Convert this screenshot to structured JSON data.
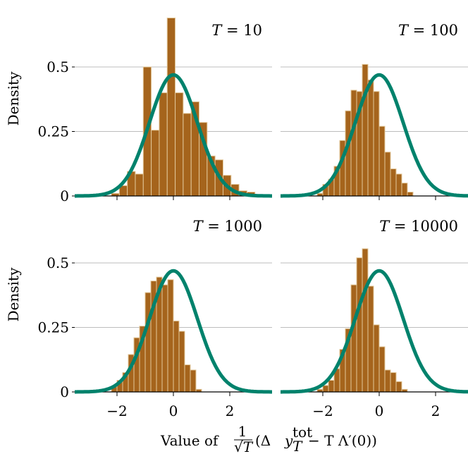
{
  "chart_data": [
    {
      "type": "bar",
      "title": "T = 10",
      "title_var": "T",
      "title_value": "10",
      "ylabel": "Density",
      "xlim": [
        -3.5,
        3.5
      ],
      "ylim": [
        0,
        0.7
      ],
      "yticks": [
        0,
        0.25,
        0.5
      ],
      "ytick_labels": [
        "0",
        "0.25",
        "0.5"
      ],
      "xticks": [],
      "bin_width": 0.283,
      "bin_start": -2.2,
      "values": [
        0.01,
        0.04,
        0.095,
        0.085,
        0.5,
        0.255,
        0.4,
        0.69,
        0.4,
        0.32,
        0.365,
        0.285,
        0.155,
        0.14,
        0.08,
        0.045,
        0.02,
        0.015,
        0.005
      ],
      "normal_curve": {
        "mean": 0,
        "sd": 0.85
      }
    },
    {
      "type": "bar",
      "title": "T = 100",
      "title_var": "T",
      "title_value": "100",
      "ylabel": "",
      "xlim": [
        -3.5,
        3.5
      ],
      "ylim": [
        0,
        0.7
      ],
      "yticks": [
        0,
        0.25,
        0.5
      ],
      "ytick_labels": [],
      "xticks": [],
      "bin_width": 0.2,
      "bin_start": -2.2,
      "values": [
        0.01,
        0.045,
        0.065,
        0.115,
        0.215,
        0.33,
        0.41,
        0.405,
        0.51,
        0.45,
        0.405,
        0.27,
        0.17,
        0.105,
        0.085,
        0.05,
        0.015
      ],
      "normal_curve": {
        "mean": 0,
        "sd": 0.85
      }
    },
    {
      "type": "bar",
      "title": "T = 1000",
      "title_var": "T",
      "title_value": "1000",
      "ylabel": "Density",
      "xlim": [
        -3.5,
        3.5
      ],
      "ylim": [
        0,
        0.7
      ],
      "yticks": [
        0,
        0.25,
        0.5
      ],
      "ytick_labels": [
        "0",
        "0.25",
        "0.5"
      ],
      "xticks": [
        -2,
        0,
        2
      ],
      "xtick_labels": [
        "−2",
        "0",
        "2"
      ],
      "bin_width": 0.2,
      "bin_start": -2.2,
      "values": [
        0.02,
        0.045,
        0.075,
        0.145,
        0.21,
        0.255,
        0.385,
        0.43,
        0.445,
        0.415,
        0.435,
        0.275,
        0.235,
        0.105,
        0.085,
        0.01
      ],
      "normal_curve": {
        "mean": 0,
        "sd": 0.85
      }
    },
    {
      "type": "bar",
      "title": "T = 10000",
      "title_var": "T",
      "title_value": "10000",
      "ylabel": "",
      "xlim": [
        -3.5,
        3.5
      ],
      "ylim": [
        0,
        0.7
      ],
      "yticks": [
        0,
        0.25,
        0.5
      ],
      "ytick_labels": [],
      "xticks": [
        -2,
        0,
        2
      ],
      "xtick_labels": [
        "−2",
        "0",
        "2"
      ],
      "bin_width": 0.2,
      "bin_start": -2.2,
      "values": [
        0.01,
        0.025,
        0.045,
        0.09,
        0.165,
        0.245,
        0.415,
        0.52,
        0.555,
        0.41,
        0.26,
        0.175,
        0.085,
        0.075,
        0.04,
        0.01
      ],
      "normal_curve": {
        "mean": 0,
        "sd": 0.85
      }
    }
  ],
  "shared_xlabel": {
    "prefix": "Value of",
    "frac_num": "1",
    "frac_den": "√T",
    "expr_open": "(Δ",
    "expr_y": "y",
    "expr_sup": "tot",
    "expr_sub": "T",
    "expr_rest": " − T Λ′(0))"
  },
  "colors": {
    "bar_fill": "#a5641c",
    "bar_edge": "#e2c79a",
    "curve": "#00826c",
    "grid": "#bdbdbd"
  }
}
